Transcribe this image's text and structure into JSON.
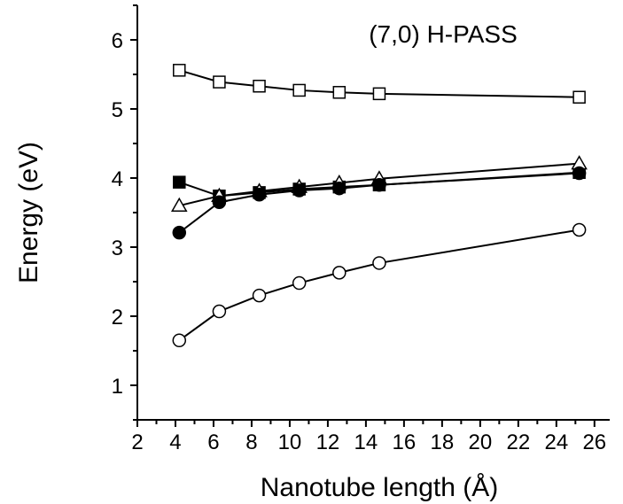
{
  "chart_data": {
    "type": "line",
    "annotation": "(7,0) H-PASS",
    "xlabel": "Nanotube length (Å)",
    "ylabel": "Energy (eV)",
    "xlim": [
      2,
      26.8
    ],
    "ylim": [
      0.5,
      6.5
    ],
    "xticks": [
      "2",
      "4",
      "6",
      "8",
      "10",
      "12",
      "14",
      "16",
      "18",
      "20",
      "22",
      "24",
      "26"
    ],
    "yticks": [
      "1",
      "2",
      "3",
      "4",
      "5",
      "6"
    ],
    "series": [
      {
        "marker": "open-square",
        "x": [
          4.2,
          6.3,
          8.4,
          10.5,
          12.6,
          14.7,
          25.2
        ],
        "y": [
          5.56,
          5.39,
          5.33,
          5.27,
          5.24,
          5.22,
          5.17
        ]
      },
      {
        "marker": "filled-square",
        "x": [
          4.2,
          6.3,
          8.4,
          10.5,
          12.6,
          14.7,
          25.2
        ],
        "y": [
          3.94,
          3.74,
          3.79,
          3.84,
          3.87,
          3.9,
          4.08
        ]
      },
      {
        "marker": "open-triangle",
        "x": [
          4.2,
          6.3,
          8.4,
          10.5,
          12.6,
          14.7,
          25.2
        ],
        "y": [
          3.6,
          3.74,
          3.81,
          3.87,
          3.93,
          3.99,
          4.21
        ]
      },
      {
        "marker": "filled-circle",
        "x": [
          4.2,
          6.3,
          8.4,
          10.5,
          12.6,
          14.7,
          25.2
        ],
        "y": [
          3.21,
          3.65,
          3.76,
          3.82,
          3.85,
          3.9,
          4.07
        ]
      },
      {
        "marker": "open-circle",
        "x": [
          4.2,
          6.3,
          8.4,
          10.5,
          12.6,
          14.7,
          25.2
        ],
        "y": [
          1.65,
          2.07,
          2.3,
          2.48,
          2.63,
          2.77,
          3.25
        ]
      }
    ]
  }
}
